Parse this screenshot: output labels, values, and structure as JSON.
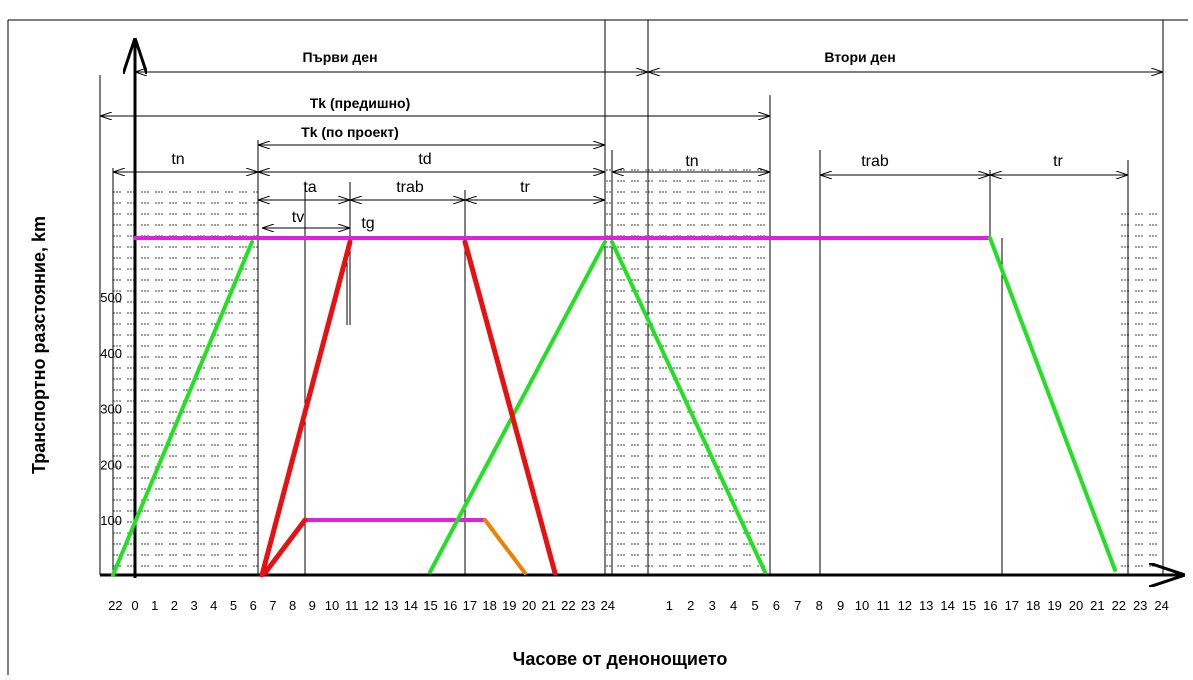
{
  "title_day1": "Първи ден",
  "title_day2": "Втори ден",
  "tk_previous": "Tk (предишно)",
  "tk_project": "Tk (по проект)",
  "intervals": {
    "tn": "tn",
    "td": "td",
    "ta": "ta",
    "trab": "trab",
    "tr": "tr",
    "tv": "tv",
    "tg": "tg",
    "tn2": "tn",
    "trab2": "trab",
    "tr2": "tr"
  },
  "y_axis_label": "Транспортно разстояние, km",
  "x_axis_label": "Часове от денонощието",
  "yticks": [
    100,
    200,
    300,
    400,
    500
  ],
  "xtick_labels": [
    "22",
    "0",
    "1",
    "2",
    "3",
    "4",
    "5",
    "6",
    "7",
    "8",
    "9",
    "10",
    "11",
    "12",
    "13",
    "14",
    "15",
    "16",
    "17",
    "18",
    "19",
    "20",
    "21",
    "22",
    "23",
    "24",
    "1",
    "2",
    "3",
    "4",
    "5",
    "6",
    "7",
    "8",
    "9",
    "10",
    "11",
    "12",
    "13",
    "14",
    "15",
    "16",
    "17",
    "18",
    "19",
    "20",
    "21",
    "22",
    "23",
    "24"
  ]
}
